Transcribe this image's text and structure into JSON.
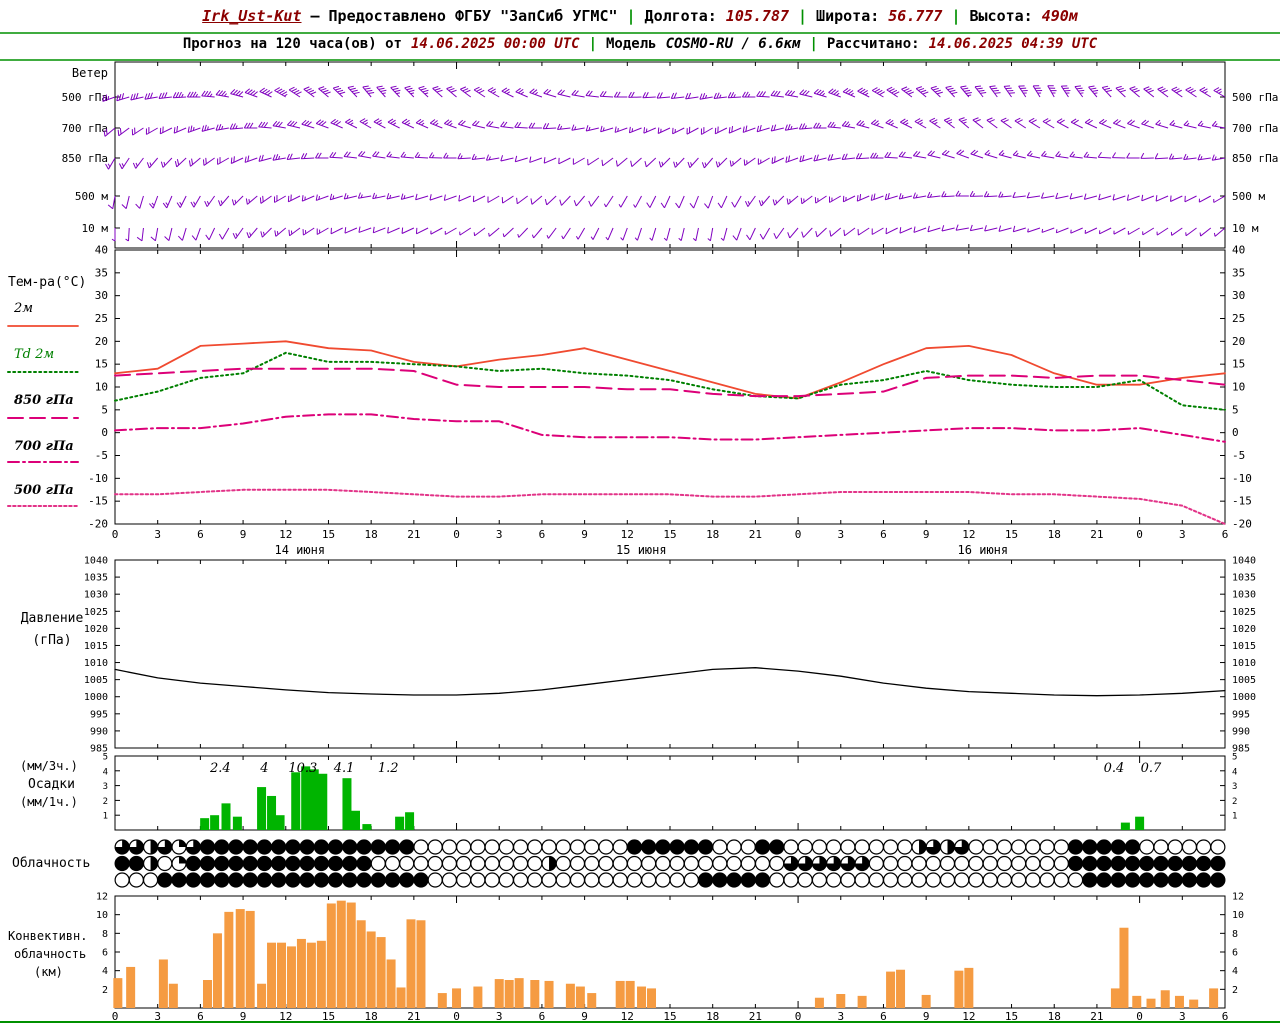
{
  "header": {
    "row1": {
      "station": "Irk_Ust-Kut",
      "dash": "–",
      "provider": "Предоставлено ФГБУ \"ЗапСиб УГМС\"",
      "sep": "|",
      "lon_label": "Долгота:",
      "lon_value": "105.787",
      "lat_label": "Широта:",
      "lat_value": "56.777",
      "alt_label": "Высота:",
      "alt_value": "490м"
    },
    "row2": {
      "forecast_label": "Прогноз на 120 часа(ов) от",
      "forecast_start": "14.06.2025 00:00 UTC",
      "sep": "|",
      "model_label": "Модель",
      "model_value": "COSMO-RU / 6.6км",
      "computed_label": "Рассчитано:",
      "computed_value": "14.06.2025 04:39 UTC"
    }
  },
  "colors": {
    "frame_green": "#009000",
    "header_accent": "#8b0000",
    "wind_barbs": "#8000c0",
    "temp_2m": "#f04a30",
    "dewpoint": "#008000",
    "t850": "#dc0078",
    "t700": "#dc0078",
    "t500": "#e23388",
    "pressure": "#000000",
    "precip": "#00b400",
    "convective": "#f59b42"
  },
  "chart_data": {
    "type": "meteogram",
    "x": {
      "hours_total": 78,
      "tick_step_h": 3,
      "hour_labels_cycle": [
        "0",
        "3",
        "6",
        "9",
        "12",
        "15",
        "18",
        "21"
      ],
      "dates": [
        {
          "h": 12,
          "label": "14 июня"
        },
        {
          "h": 36,
          "label": "15 июня"
        },
        {
          "h": 60,
          "label": "16 июня"
        }
      ]
    },
    "wind": {
      "title": "Ветер",
      "levels": [
        "500 гПа",
        "700 гПа",
        "850 гПа",
        "500 м",
        "10 м"
      ],
      "keyframes_h": [
        0,
        6,
        12,
        18,
        24,
        30,
        36,
        42,
        48,
        54,
        60,
        66,
        72,
        78
      ],
      "series": [
        {
          "level": "500 гПа",
          "dir": [
            250,
            270,
            300,
            320,
            310,
            290,
            270,
            260,
            280,
            300,
            320,
            330,
            310,
            300
          ],
          "spd": [
            14,
            18,
            22,
            20,
            16,
            12,
            10,
            12,
            16,
            20,
            22,
            18,
            16,
            14
          ]
        },
        {
          "level": "700 гПа",
          "dir": [
            230,
            250,
            280,
            300,
            290,
            270,
            250,
            240,
            260,
            290,
            310,
            300,
            290,
            280
          ],
          "spd": [
            10,
            12,
            16,
            14,
            12,
            10,
            8,
            10,
            12,
            14,
            12,
            10,
            10,
            8
          ]
        },
        {
          "level": "850 гПа",
          "dir": [
            210,
            230,
            260,
            280,
            270,
            250,
            230,
            220,
            250,
            270,
            290,
            280,
            270,
            260
          ],
          "spd": [
            8,
            10,
            12,
            10,
            8,
            6,
            6,
            8,
            10,
            12,
            10,
            8,
            6,
            8
          ]
        },
        {
          "level": "500 м",
          "dir": [
            190,
            210,
            240,
            260,
            250,
            230,
            210,
            200,
            230,
            250,
            270,
            260,
            250,
            240
          ],
          "spd": [
            6,
            8,
            10,
            8,
            6,
            6,
            4,
            6,
            8,
            10,
            8,
            6,
            6,
            4
          ]
        },
        {
          "level": "10 м",
          "dir": [
            180,
            200,
            230,
            250,
            240,
            220,
            200,
            190,
            220,
            240,
            260,
            250,
            240,
            230
          ],
          "spd": [
            4,
            6,
            8,
            6,
            4,
            4,
            2,
            4,
            6,
            6,
            6,
            4,
            4,
            4
          ]
        }
      ]
    },
    "temperature": {
      "ylabel": "Тем-ра(°C)",
      "ylim": [
        -20,
        40
      ],
      "ytick_step": 5,
      "x_step_h": 3,
      "series": [
        {
          "name": "2м",
          "style": "solid",
          "color_key": "temp_2m",
          "label_color": "#000000",
          "values": [
            13,
            14,
            19,
            19.5,
            20,
            18.5,
            18,
            15.5,
            14.5,
            16,
            17,
            18.5,
            16,
            13.5,
            11,
            8.5,
            7.5,
            11,
            15,
            18.5,
            19,
            17,
            13,
            10.5,
            10.5,
            12,
            13
          ]
        },
        {
          "name": "Td 2м",
          "style": "dotted",
          "color_key": "dewpoint",
          "label_color": "#008000",
          "values": [
            7,
            9,
            12,
            13,
            17.5,
            15.5,
            15.5,
            15,
            14.5,
            13.5,
            14,
            13,
            12.5,
            11.5,
            9.5,
            8,
            7.5,
            10.5,
            11.5,
            13.5,
            11.5,
            10.5,
            10,
            10,
            11.5,
            6,
            5
          ]
        },
        {
          "name": "850 гПа",
          "style": "dashed",
          "color_key": "t850",
          "label_color": "#000000",
          "values": [
            12.5,
            13,
            13.5,
            14,
            14,
            14,
            14,
            13.5,
            10.5,
            10,
            10,
            10,
            9.5,
            9.5,
            8.5,
            8,
            8,
            8.5,
            9,
            12,
            12.5,
            12.5,
            12,
            12.5,
            12.5,
            11.5,
            10.5
          ]
        },
        {
          "name": "700 гПа",
          "style": "dashdot",
          "color_key": "t700",
          "label_color": "#000000",
          "values": [
            0.5,
            1,
            1,
            2,
            3.5,
            4,
            4,
            3,
            2.5,
            2.5,
            -0.5,
            -1,
            -1,
            -1,
            -1.5,
            -1.5,
            -1,
            -0.5,
            0,
            0.5,
            1,
            1,
            0.5,
            0.5,
            1,
            -0.5,
            -2
          ]
        },
        {
          "name": "500 гПа",
          "style": "densedot",
          "color_key": "t500",
          "label_color": "#000000",
          "values": [
            -13.5,
            -13.5,
            -13,
            -12.5,
            -12.5,
            -12.5,
            -13,
            -13.5,
            -14,
            -14,
            -13.5,
            -13.5,
            -13.5,
            -13.5,
            -14,
            -14,
            -13.5,
            -13,
            -13,
            -13,
            -13,
            -13.5,
            -13.5,
            -14,
            -14.5,
            -16,
            -20
          ]
        }
      ]
    },
    "pressure": {
      "ylabel_lines": [
        "Давление",
        "(гПа)"
      ],
      "ylim": [
        985,
        1040
      ],
      "ytick_step": 5,
      "x_step_h": 3,
      "values": [
        1008,
        1005.5,
        1004,
        1003,
        1002,
        1001.2,
        1000.8,
        1000.5,
        1000.5,
        1001,
        1002,
        1003.5,
        1005,
        1006.5,
        1008,
        1008.5,
        1007.5,
        1006,
        1004,
        1002.5,
        1001.5,
        1001,
        1000.5,
        1000.3,
        1000.5,
        1001,
        1001.8
      ]
    },
    "precipitation": {
      "ylabel_lines": [
        "(мм/3ч.)",
        "Осадки",
        "(мм/1ч.)"
      ],
      "ylim": [
        0,
        5
      ],
      "bars": [
        [
          6.3,
          0.8
        ],
        [
          7.0,
          1.0
        ],
        [
          7.8,
          1.8
        ],
        [
          8.6,
          0.9
        ],
        [
          10.3,
          2.9
        ],
        [
          11.0,
          2.3
        ],
        [
          11.6,
          1.0
        ],
        [
          12.7,
          3.9
        ],
        [
          13.4,
          4.3
        ],
        [
          14.0,
          4.1
        ],
        [
          14.6,
          3.8
        ],
        [
          16.3,
          3.5
        ],
        [
          16.9,
          1.3
        ],
        [
          17.7,
          0.4
        ],
        [
          20.0,
          0.9
        ],
        [
          20.7,
          1.2
        ],
        [
          71.0,
          0.5
        ],
        [
          72.0,
          0.9
        ]
      ],
      "sum_labels": [
        [
          7.4,
          "2.4"
        ],
        [
          10.5,
          "4"
        ],
        [
          13.2,
          "10.3"
        ],
        [
          16.1,
          "4.1"
        ],
        [
          19.2,
          "1.2"
        ],
        [
          70.2,
          "0.4"
        ],
        [
          72.8,
          "0.7"
        ]
      ]
    },
    "cloudiness": {
      "label": "Облачность",
      "octas_max": 8,
      "rows": [
        [
          6,
          6,
          4,
          6,
          2,
          6,
          8,
          8,
          8,
          8,
          8,
          8,
          8,
          8,
          8,
          8,
          8,
          8,
          8,
          8,
          8,
          0,
          0,
          0,
          0,
          0,
          0,
          0,
          0,
          0,
          0,
          0,
          0,
          0,
          0,
          0,
          8,
          8,
          8,
          8,
          8,
          8,
          0,
          0,
          0,
          8,
          8,
          0,
          0,
          0,
          0,
          0,
          0,
          0,
          0,
          0,
          4,
          6,
          4,
          6,
          0,
          0,
          0,
          0,
          0,
          0,
          0,
          8,
          8,
          8,
          8,
          8,
          0,
          0,
          0,
          0,
          0,
          0
        ],
        [
          8,
          8,
          4,
          0,
          2,
          8,
          8,
          8,
          8,
          8,
          8,
          8,
          8,
          8,
          8,
          8,
          8,
          8,
          0,
          0,
          0,
          0,
          0,
          0,
          0,
          0,
          0,
          0,
          0,
          0,
          4,
          0,
          0,
          0,
          0,
          0,
          0,
          0,
          0,
          0,
          0,
          0,
          0,
          0,
          0,
          0,
          0,
          6,
          6,
          6,
          6,
          6,
          6,
          0,
          0,
          0,
          0,
          0,
          0,
          0,
          0,
          0,
          0,
          0,
          0,
          0,
          0,
          8,
          8,
          8,
          8,
          8,
          8,
          8,
          8,
          8,
          8,
          8
        ],
        [
          0,
          0,
          0,
          8,
          8,
          8,
          8,
          8,
          8,
          8,
          8,
          8,
          8,
          8,
          8,
          8,
          8,
          8,
          8,
          8,
          8,
          8,
          0,
          0,
          0,
          0,
          0,
          0,
          0,
          0,
          0,
          0,
          0,
          0,
          0,
          0,
          0,
          0,
          0,
          0,
          0,
          8,
          8,
          8,
          8,
          8,
          0,
          0,
          0,
          0,
          0,
          0,
          0,
          0,
          0,
          0,
          0,
          0,
          0,
          0,
          0,
          0,
          0,
          0,
          0,
          0,
          0,
          0,
          8,
          8,
          8,
          8,
          8,
          8,
          8,
          8,
          8,
          8
        ]
      ]
    },
    "convective": {
      "ylabel_lines": [
        "Конвективн.",
        "облачность",
        "(км)"
      ],
      "ylim": [
        0,
        12
      ],
      "ytick_step": 2,
      "bars": [
        [
          0.2,
          3.2
        ],
        [
          1.1,
          4.4
        ],
        [
          3.4,
          5.2
        ],
        [
          4.1,
          2.6
        ],
        [
          6.5,
          3.0
        ],
        [
          7.2,
          8.0
        ],
        [
          8.0,
          10.3
        ],
        [
          8.8,
          10.6
        ],
        [
          9.5,
          10.4
        ],
        [
          10.3,
          2.6
        ],
        [
          11.0,
          7.0
        ],
        [
          11.7,
          7.0
        ],
        [
          12.4,
          6.6
        ],
        [
          13.1,
          7.4
        ],
        [
          13.8,
          7.0
        ],
        [
          14.5,
          7.2
        ],
        [
          15.2,
          11.2
        ],
        [
          15.9,
          11.5
        ],
        [
          16.6,
          11.3
        ],
        [
          17.3,
          9.4
        ],
        [
          18.0,
          8.2
        ],
        [
          18.7,
          7.6
        ],
        [
          19.4,
          5.2
        ],
        [
          20.1,
          2.2
        ],
        [
          20.8,
          9.5
        ],
        [
          21.5,
          9.4
        ],
        [
          23.0,
          1.6
        ],
        [
          24.0,
          2.1
        ],
        [
          25.5,
          2.3
        ],
        [
          27.0,
          3.1
        ],
        [
          27.7,
          3.0
        ],
        [
          28.4,
          3.2
        ],
        [
          29.5,
          3.0
        ],
        [
          30.5,
          2.9
        ],
        [
          32.0,
          2.6
        ],
        [
          32.7,
          2.3
        ],
        [
          33.5,
          1.6
        ],
        [
          35.5,
          2.9
        ],
        [
          36.2,
          2.9
        ],
        [
          37.0,
          2.3
        ],
        [
          37.7,
          2.1
        ],
        [
          49.5,
          1.1
        ],
        [
          51.0,
          1.5
        ],
        [
          52.5,
          1.3
        ],
        [
          54.5,
          3.9
        ],
        [
          55.2,
          4.1
        ],
        [
          57.0,
          1.4
        ],
        [
          59.3,
          4.0
        ],
        [
          60.0,
          4.3
        ],
        [
          70.3,
          2.1
        ],
        [
          70.9,
          8.6
        ],
        [
          71.8,
          1.3
        ],
        [
          72.8,
          1.0
        ],
        [
          73.8,
          1.9
        ],
        [
          74.8,
          1.3
        ],
        [
          75.8,
          0.9
        ],
        [
          77.2,
          2.1
        ]
      ]
    }
  }
}
